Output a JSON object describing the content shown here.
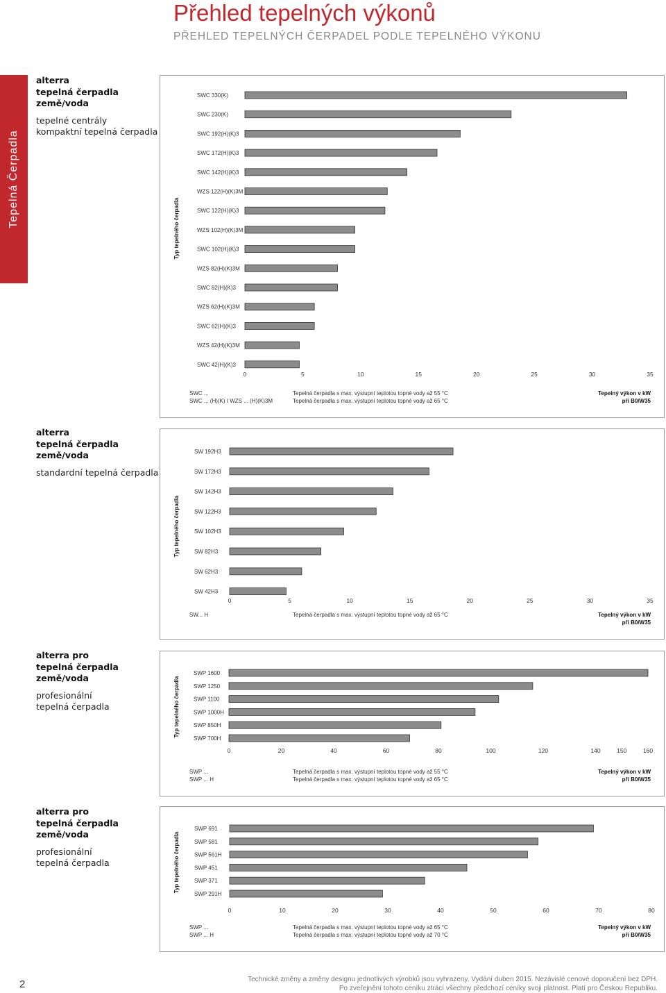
{
  "page": {
    "title": "Přehled tepelných výkonů",
    "subtitle": "PŘEHLED TEPELNÝCH ČERPADEL PODLE TEPELNÉHO VÝKONU",
    "side_tab": "Tepelná Čerpadla",
    "page_number": "2",
    "footer_line1": "Technické změny a změny designu jednotlivých výrobků jsou vyhrazeny. Vydání duben 2015. Nezávislé cenové doporučení bez DPH.",
    "footer_line2": "Po zveřejnění tohoto ceníku ztrácí všechny předchozí ceníky svoji platnost. Platí pro Českou Republiku."
  },
  "colors": {
    "accent": "#c0282d",
    "bar": "#8c8c8c",
    "bar_outline": "#333333"
  },
  "sections": [
    {
      "left": [
        "alterra",
        "tepelná čerpadla",
        "země/voda"
      ],
      "left_sub": [
        "tepelné centrály",
        "kompaktní tepelná čerpadla"
      ],
      "legend_codes": [
        "SWC ...",
        "SWC ... (H)(K) I WZS ... (H)(K)3M"
      ],
      "legend_texts": [
        "Tepelná čerpadla s max. výstupní teplotou topné vody až 55 °C",
        "Tepelná čerpadla s max. výstupní teplotou topné vody až 65 °C"
      ],
      "unit": [
        "Tepelný výkon v kW",
        "při B0/W35"
      ],
      "ylabel": "Typ tepelného čerpadla"
    },
    {
      "left": [
        "alterra",
        "tepelná čerpadla",
        "země/voda"
      ],
      "left_sub": [
        "standardní tepelná čerpadla"
      ],
      "legend_codes": [
        "SW... H"
      ],
      "legend_texts": [
        "Tepelná čerpadla s max. výstupní teplotou topné vody až 65 °C"
      ],
      "unit": [
        "Tepelný výkon v kW",
        "při B0/W35"
      ],
      "ylabel": "Typ tepelného čerpadla"
    },
    {
      "left": [
        "alterra pro",
        "tepelná čerpadla",
        "země/voda"
      ],
      "left_sub": [
        "profesionální",
        "tepelná čerpadla"
      ],
      "legend_codes": [
        "SWP ...",
        "SWP ... H"
      ],
      "legend_texts": [
        "Tepelná čerpadla s max. výstupní teplotou topné vody až 55 °C",
        "Tepelná čerpadla s max. výstupní teplotou topné vody až 65 °C"
      ],
      "unit": [
        "Tepelný výkon v kW",
        "při B0/W35"
      ],
      "ylabel": "Typ tepelného čerpadla"
    },
    {
      "left": [
        "alterra pro",
        "tepelná čerpadla",
        "země/voda"
      ],
      "left_sub": [
        "profesionální",
        "tepelná čerpadla"
      ],
      "legend_codes": [
        "SWP ...",
        "SWP ... H"
      ],
      "legend_texts": [
        "Tepelná čerpadla s max. výstupní teplotou topné vody až 65 °C",
        "Tepelná čerpadla s max. výstupní teplotou topné vody až 70 °C"
      ],
      "unit": [
        "Tepelný výkon v kW",
        "při B0/W35"
      ],
      "ylabel": "Typ tepelného čerpadla"
    }
  ],
  "chart_data": [
    {
      "type": "bar",
      "orientation": "horizontal",
      "categories": [
        "SWC 330(K)",
        "SWC 230(K)",
        "SWC 192(H)(K)3",
        "SWC 172(H)(K)3",
        "SWC 142(H)(K)3",
        "WZS 122(H)(K)3M",
        "SWC 122(H)(K)3",
        "WZS 102(H)(K)3M",
        "SWC 102(H)(K)3",
        "WZS 82(H)(K)3M",
        "SWC 82(H)(K)3",
        "WZS 62(H)(K)3M",
        "SWC 62(H)(K)3",
        "WZS 42(H)(K)3M",
        "SWC 42(H)(K)3"
      ],
      "values": [
        33.0,
        23.0,
        18.6,
        16.6,
        14.0,
        12.3,
        12.1,
        9.5,
        9.5,
        8.0,
        8.0,
        6.0,
        6.0,
        4.7,
        4.7
      ],
      "xlim": [
        0,
        35
      ],
      "xticks": [
        0,
        5,
        10,
        15,
        20,
        25,
        30,
        35
      ],
      "xtick_labels": [
        "0",
        "5",
        "10",
        "15",
        "20",
        "25",
        "30",
        "35"
      ],
      "ylabel": "Typ tepelného čerpadla"
    },
    {
      "type": "bar",
      "orientation": "horizontal",
      "categories": [
        "SW 192H3",
        "SW 172H3",
        "SW 142H3",
        "SW 122H3",
        "SW 102H3",
        "SW 82H3",
        "SW 62H3",
        "SW 42H3"
      ],
      "values": [
        18.6,
        16.6,
        13.6,
        12.2,
        9.5,
        7.6,
        6.0,
        4.7
      ],
      "xlim": [
        0,
        35
      ],
      "xticks": [
        0,
        5,
        10,
        15,
        20,
        25,
        30,
        35
      ],
      "xtick_labels": [
        "0",
        "5",
        "10",
        "15",
        "20",
        "25",
        "30",
        "35"
      ],
      "ylabel": "Typ tepelného čerpadla"
    },
    {
      "type": "bar",
      "orientation": "horizontal",
      "categories": [
        "SWP 1600",
        "SWP 1250",
        "SWP 1100",
        "SWP 1000H",
        "SWP 850H",
        "SWP 700H"
      ],
      "values": [
        160,
        116,
        103,
        94,
        81,
        69
      ],
      "xlim": [
        0,
        160
      ],
      "xticks": [
        0,
        20,
        40,
        60,
        80,
        100,
        120,
        140,
        150,
        160
      ],
      "xtick_labels": [
        "0",
        "20",
        "40",
        "60",
        "80",
        "100",
        "120",
        "140",
        "150",
        "160"
      ],
      "ylabel": "Typ tepelného čerpadla"
    },
    {
      "type": "bar",
      "orientation": "horizontal",
      "categories": [
        "SWP 691",
        "SWP 581",
        "SWP 561H",
        "SWP 451",
        "SWP 371",
        "SWP 291H"
      ],
      "values": [
        69,
        58.5,
        56.5,
        45,
        37,
        29
      ],
      "xlim": [
        0,
        80
      ],
      "xticks": [
        0,
        10,
        20,
        30,
        40,
        50,
        60,
        70,
        80
      ],
      "xtick_labels": [
        "0",
        "10",
        "20",
        "30",
        "40",
        "50",
        "60",
        "70",
        "80"
      ],
      "ylabel": "Typ tepelného čerpadla"
    }
  ]
}
